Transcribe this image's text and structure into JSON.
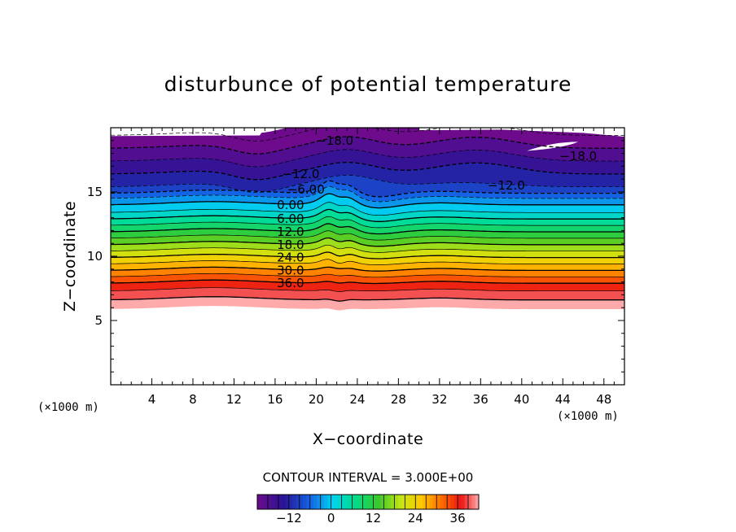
{
  "chart_data": {
    "type": "contour",
    "title": "disturbunce of potential temperature",
    "xlabel": "X−coordinate",
    "ylabel": "Z−coordinate",
    "x_unit_label_left": "(×1000 m)",
    "x_unit_label_right": "(×1000 m)",
    "xlim": [
      0,
      50
    ],
    "ylim": [
      0,
      20
    ],
    "x_ticks": [
      4,
      8,
      12,
      16,
      20,
      24,
      28,
      32,
      36,
      40,
      44,
      48
    ],
    "y_ticks": [
      5,
      10,
      15
    ],
    "contour_interval_text": "CONTOUR INTERVAL = 3.000E+00",
    "colorbar": {
      "min": -21,
      "max": 42,
      "tick_values": [
        -12,
        0,
        12,
        24,
        36
      ],
      "tick_labels": [
        "−12",
        "0",
        "12",
        "24",
        "36"
      ]
    },
    "contour_labels": [
      {
        "text": "−18.0",
        "x": 21.8,
        "z": 19.0
      },
      {
        "text": "−18.0",
        "x": 45.5,
        "z": 17.8
      },
      {
        "text": "−12.0",
        "x": 18.5,
        "z": 16.4
      },
      {
        "text": "−12.0",
        "x": 38.5,
        "z": 15.5
      },
      {
        "text": "−6.00",
        "x": 19.0,
        "z": 15.2
      },
      {
        "text": "0.00",
        "x": 17.5,
        "z": 14.0
      },
      {
        "text": "6.00",
        "x": 17.5,
        "z": 12.9
      },
      {
        "text": "12.0",
        "x": 17.5,
        "z": 11.9
      },
      {
        "text": "18.0",
        "x": 17.5,
        "z": 10.9
      },
      {
        "text": "24.0",
        "x": 17.5,
        "z": 9.9
      },
      {
        "text": "30.0",
        "x": 17.5,
        "z": 8.9
      },
      {
        "text": "36.0",
        "x": 17.5,
        "z": 7.9
      }
    ],
    "level_heights_z": [
      {
        "level": -21,
        "z": 19.4
      },
      {
        "level": -18,
        "z": 18.4
      },
      {
        "level": -15,
        "z": 17.4
      },
      {
        "level": -12,
        "z": 16.4
      },
      {
        "level": -9,
        "z": 15.4
      },
      {
        "level": -6,
        "z": 14.9
      },
      {
        "level": -3,
        "z": 14.5
      },
      {
        "level": 0,
        "z": 14.0
      },
      {
        "level": 3,
        "z": 13.4
      },
      {
        "level": 6,
        "z": 12.9
      },
      {
        "level": 9,
        "z": 12.4
      },
      {
        "level": 12,
        "z": 11.9
      },
      {
        "level": 15,
        "z": 11.4
      },
      {
        "level": 18,
        "z": 10.9
      },
      {
        "level": 21,
        "z": 10.4
      },
      {
        "level": 24,
        "z": 9.9
      },
      {
        "level": 27,
        "z": 9.4
      },
      {
        "level": 30,
        "z": 8.9
      },
      {
        "level": 33,
        "z": 8.4
      },
      {
        "level": 36,
        "z": 7.9
      },
      {
        "level": 39,
        "z": 7.3
      },
      {
        "level": 42,
        "z": 6.6
      }
    ],
    "colors": {
      "frame": "#000000",
      "negative_contour": "#000000",
      "positive_contour": "#000000"
    }
  }
}
